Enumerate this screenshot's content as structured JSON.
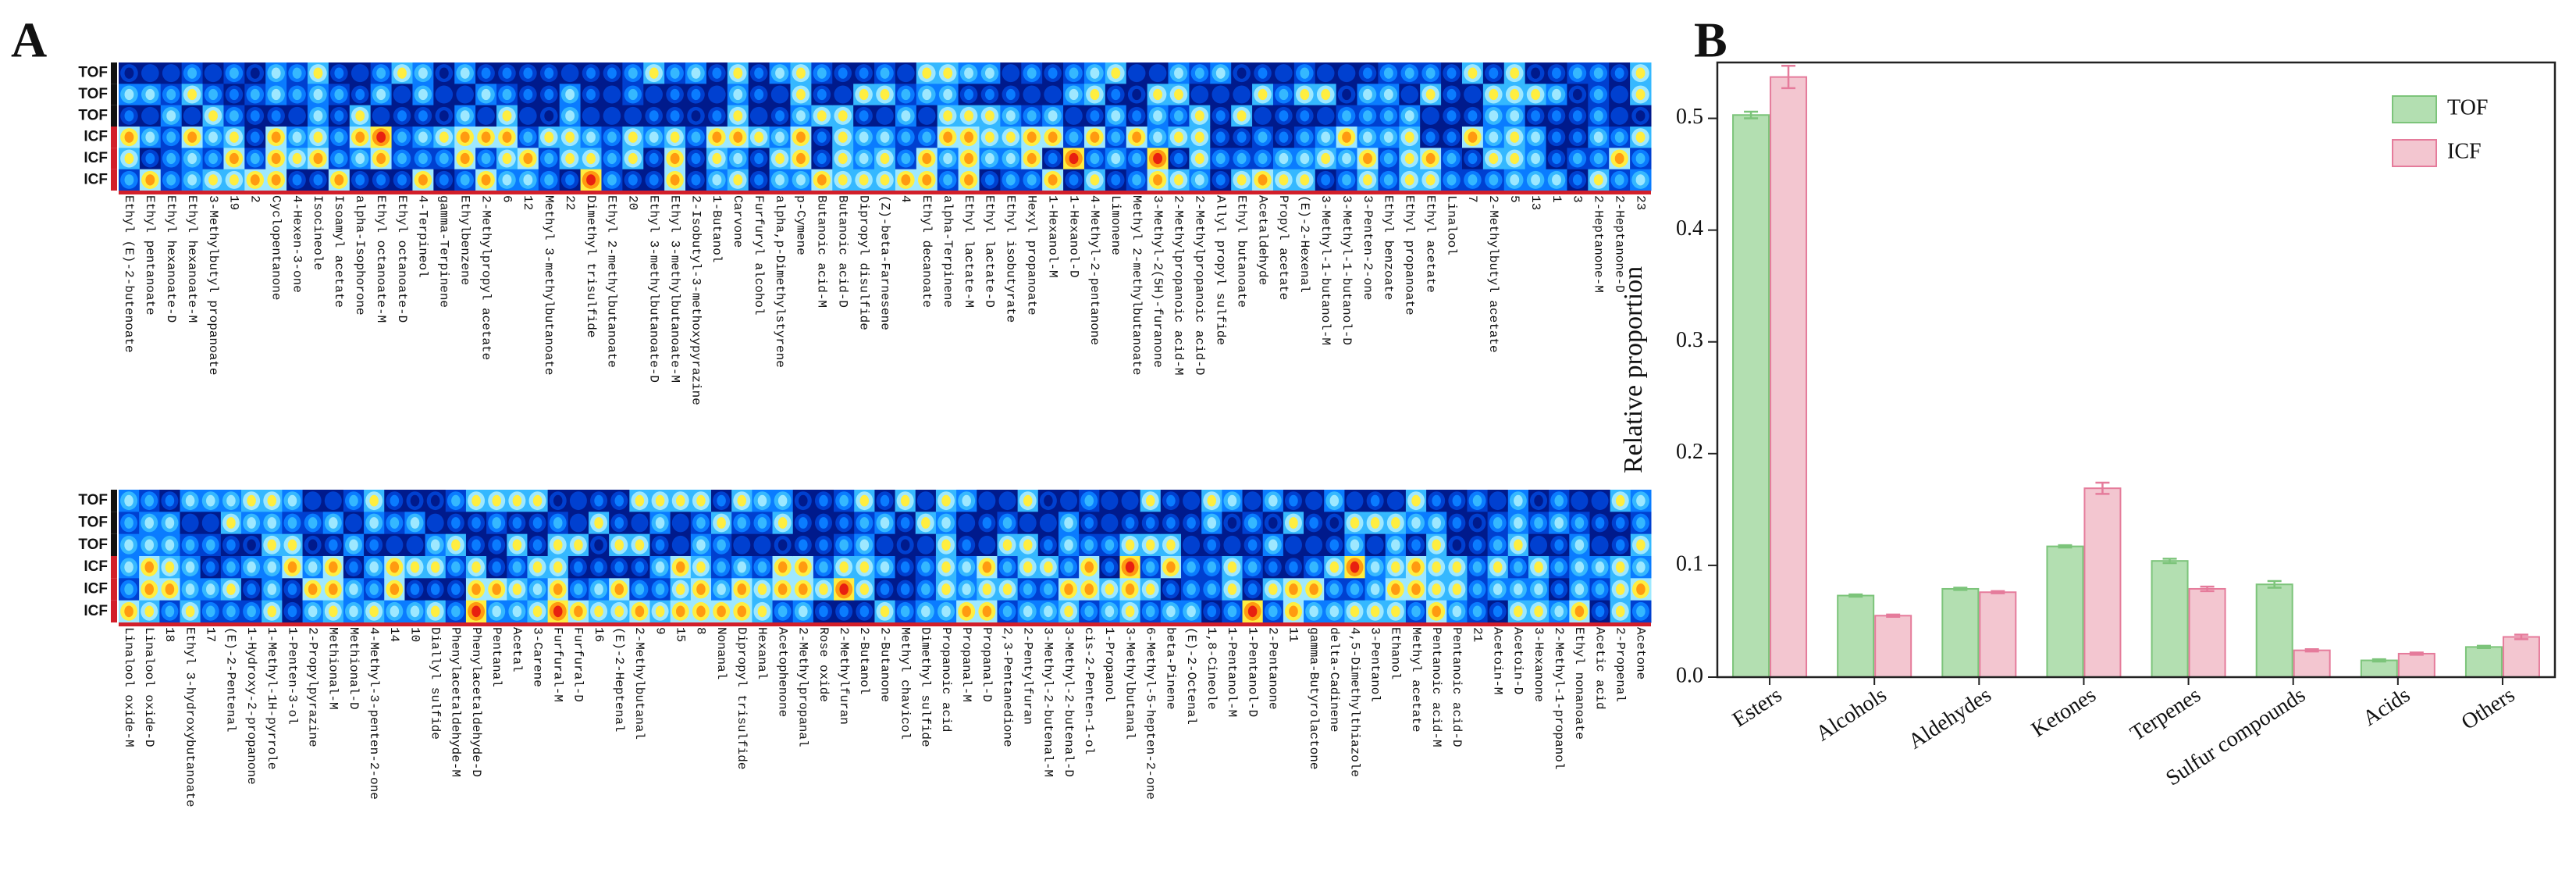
{
  "fingerprint": {
    "panel_label": "A",
    "row_labels": [
      "TOF",
      "TOF",
      "TOF",
      "ICF",
      "ICF",
      "ICF"
    ],
    "top": {
      "labels": [
        "Ethyl (E)-2-butenoate",
        "Ethyl pentanoate",
        "Ethyl hexanoate-D",
        "Ethyl hexanoate-M",
        "3-Methylbutyl propanoate",
        "19",
        "2",
        "Cyclopentanone",
        "4-Hexen-3-one",
        "Isocineole",
        "Isoamyl acetate",
        "alpha-Isophorone",
        "Ethyl octanoate-M",
        "Ethyl octanoate-D",
        "4-Terpineol",
        "gamma-Terpinene",
        "Ethylbenzene",
        "2-Methylpropyl acetate",
        "6",
        "12",
        "Methyl 3-methylbutanoate",
        "22",
        "Dimethyl trisulfide",
        "Ethyl 2-methylbutanoate",
        "20",
        "Ethyl 3-methylbutanoate-D",
        "Ethyl 3-methylbutanoate-M",
        "2-Isobutyl-3-methoxypyrazine",
        "1-Butanol",
        "Carvone",
        "Furfuryl alcohol",
        "alpha,p-Dimethylstyrene",
        "p-Cymene",
        "Butanoic acid-M",
        "Butanoic acid-D",
        "Dipropyl disulfide",
        "(Z)-beta-Farnesene",
        "4",
        "Ethyl decanoate",
        "alpha-Terpinene",
        "Ethyl lactate-M",
        "Ethyl lactate-D",
        "Ethyl isobutyrate",
        "Hexyl propanoate",
        "1-Hexanol-M",
        "1-Hexanol-D",
        "4-Methyl-2-pentanone",
        "Limonene",
        "Methyl 2-methylbutanoate",
        "3-Methyl-2(5H)-furanone",
        "2-Methylpropanoic acid-M",
        "2-Methylpropanoic acid-D",
        "Allyl propyl sulfide",
        "Ethyl butanoate",
        "Acetaldehyde",
        "Propyl acetate",
        "(E)-2-Hexenal",
        "3-Methyl-1-butanol-M",
        "3-Methyl-1-butanol-D",
        "3-Penten-2-one",
        "Ethyl benzoate",
        "Ethyl propanoate",
        "Ethyl acetate",
        "Linalool",
        "7",
        "2-Methylbutyl acetate",
        "5",
        "13",
        "1",
        "3",
        "2-Heptanone-M",
        "2-Heptanone-D",
        "23"
      ]
    },
    "bottom": {
      "labels": [
        "Linalool oxide-M",
        "Linalool oxide-D",
        "18",
        "Ethyl 3-hydroxybutanoate",
        "17",
        "(E)-2-Pentenal",
        "1-Hydroxy-2-propanone",
        "1-Methyl-1H-pyrrole",
        "1-Penten-3-ol",
        "2-Propylpyrazine",
        "Methional-M",
        "Methional-D",
        "4-Methyl-3-penten-2-one",
        "14",
        "10",
        "Diallyl sulfide",
        "Phenylacetaldehyde-M",
        "Phenylacetaldehyde-D",
        "Pentanal",
        "Acetal",
        "3-Carene",
        "Furfural-M",
        "Furfural-D",
        "16",
        "(E)-2-Heptenal",
        "2-Methylbutanal",
        "9",
        "15",
        "8",
        "Nonanal",
        "Dipropyl trisulfide",
        "Hexanal",
        "Acetophenone",
        "2-Methylpropanal",
        "Rose oxide",
        "2-Methylfuran",
        "2-Butanol",
        "2-Butanone",
        "Methyl chavicol",
        "Dimethyl sulfide",
        "Propanoic acid",
        "Propanal-M",
        "Propanal-D",
        "2,3-Pentanedione",
        "2-Pentylfuran",
        "3-Methyl-2-butenal-M",
        "3-Methyl-2-butenal-D",
        "cis-2-Penten-1-ol",
        "1-Propanol",
        "3-Methylbutanal",
        "6-Methyl-5-hepten-2-one",
        "beta-Pinene",
        "(E)-2-Octenal",
        "1,8-Cineole",
        "1-Pentanol-M",
        "1-Pentanol-D",
        "2-Pentanone",
        "11",
        "gamma-Butyrolactone",
        "delta-Cadinene",
        "4,5-Dimethylthiazole",
        "3-Pentanol",
        "Ethanol",
        "Methyl acetate",
        "Pentanoic acid-M",
        "Pentanoic acid-D",
        "21",
        "Acetoin-M",
        "Acetoin-D",
        "3-Hexanone",
        "2-Methyl-1-propanol",
        "Ethyl nonanoate",
        "Acetic acid",
        "2-Propenal",
        "Acetone"
      ]
    }
  },
  "chart_data": {
    "type": "bar",
    "panel_label": "B",
    "y_label": "Relative proportion",
    "categories": [
      "Esters",
      "Alcohols",
      "Aldehydes",
      "Ketones",
      "Terpenes",
      "Sulfur compounds",
      "Acids",
      "Others"
    ],
    "series": [
      {
        "name": "TOF",
        "color": "#b3dfb1",
        "edge": "#7cc47a",
        "values": [
          0.503,
          0.073,
          0.079,
          0.117,
          0.104,
          0.083,
          0.015,
          0.027
        ],
        "errors": [
          0.003,
          0.001,
          0.001,
          0.001,
          0.002,
          0.003,
          0.001,
          0.001
        ]
      },
      {
        "name": "ICF",
        "color": "#f3c6d0",
        "edge": "#e57b9b",
        "values": [
          0.537,
          0.055,
          0.076,
          0.169,
          0.079,
          0.024,
          0.021,
          0.036
        ],
        "errors": [
          0.01,
          0.001,
          0.001,
          0.005,
          0.002,
          0.001,
          0.001,
          0.002
        ]
      }
    ],
    "ylim": [
      0,
      0.55
    ],
    "yticks": [
      {
        "value": 0,
        "label": "0.0"
      },
      0.1,
      0.2,
      0.3,
      0.4,
      0.5
    ],
    "legend": "top-right"
  }
}
